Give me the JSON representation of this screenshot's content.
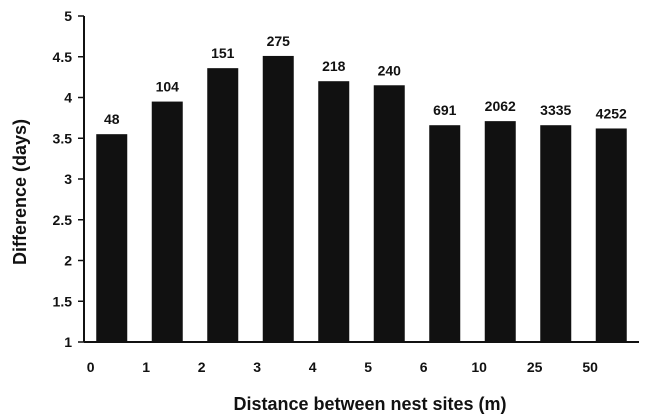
{
  "chart_data": {
    "type": "bar",
    "title": "",
    "xlabel": "Distance between nest sites (m)",
    "ylabel": "Difference (days)",
    "ylim": [
      1,
      5
    ],
    "yticks": [
      "1",
      "1.5",
      "2",
      "2.5",
      "3",
      "3.5",
      "4",
      "4.5",
      "5"
    ],
    "xticks": [
      "0",
      "1",
      "2",
      "3",
      "4",
      "5",
      "6",
      "10",
      "25",
      "50"
    ],
    "values": [
      3.55,
      3.95,
      4.36,
      4.51,
      4.2,
      4.15,
      3.66,
      3.71,
      3.66,
      3.62
    ],
    "bar_labels": [
      "48",
      "104",
      "151",
      "275",
      "218",
      "240",
      "691",
      "2062",
      "3335",
      "4252"
    ],
    "bar_color": "#111111",
    "grid": false,
    "legend": "none"
  }
}
